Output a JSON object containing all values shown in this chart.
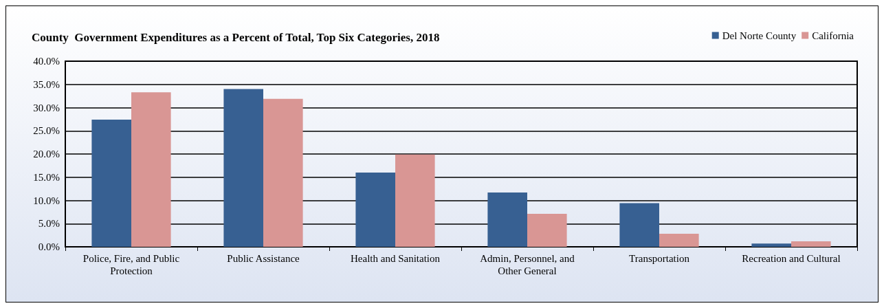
{
  "chart_data": {
    "type": "bar",
    "title": "County  Government Expenditures as a Percent of Total, Top Six Categories, 2018",
    "categories": [
      "Police, Fire, and Public\nProtection",
      "Public Assistance",
      "Health and Sanitation",
      "Admin, Personnel, and\nOther General",
      "Transportation",
      "Recreation and Cultural"
    ],
    "series": [
      {
        "name": "Del Norte County",
        "color": "#376092",
        "values": [
          27.4,
          34.0,
          16.0,
          11.7,
          9.4,
          0.7
        ]
      },
      {
        "name": "California",
        "color": "#d99694",
        "values": [
          33.3,
          31.9,
          19.9,
          7.1,
          2.8,
          1.2
        ]
      }
    ],
    "ylim": [
      0,
      40
    ],
    "yticks": [
      {
        "value": 0,
        "label": "0.0%"
      },
      {
        "value": 5,
        "label": "5.0%"
      },
      {
        "value": 10,
        "label": "10.0%"
      },
      {
        "value": 15,
        "label": "15.0%"
      },
      {
        "value": 20,
        "label": "20.0%"
      },
      {
        "value": 25,
        "label": "25.0%"
      },
      {
        "value": 30,
        "label": "30.0%"
      },
      {
        "value": 35,
        "label": "35.0%"
      },
      {
        "value": 40,
        "label": "40.0%"
      }
    ],
    "grid": "y",
    "legend": "top right"
  }
}
